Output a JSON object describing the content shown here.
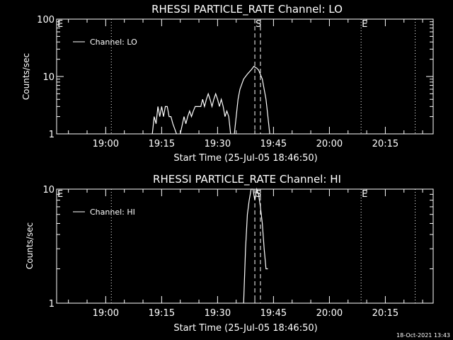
{
  "footer": {
    "timestamp": "18-Oct-2021 13:43"
  },
  "chart_data": [
    {
      "type": "line",
      "title": "RHESSI PARTICLE_RATE Channel: LO",
      "xlabel": "Start Time (25-Jul-05 18:46:50)",
      "ylabel": "Counts/sec",
      "y_scale": "log",
      "ylim": [
        1,
        100
      ],
      "y_ticks": [
        {
          "value": 1,
          "label": "1"
        },
        {
          "value": 10,
          "label": "10"
        },
        {
          "value": 100,
          "label": "100"
        }
      ],
      "xlim": [
        "18:46:50",
        "20:27:50"
      ],
      "x_ticks": [
        "19:00",
        "19:15",
        "19:30",
        "19:45",
        "20:00",
        "20:15"
      ],
      "legend": {
        "position": "top-left",
        "entries": [
          "Channel: LO"
        ]
      },
      "markers": [
        {
          "label": "E",
          "time": "18:46:50",
          "style": "dotted"
        },
        {
          "label": "",
          "time": "19:01:30",
          "style": "dotted"
        },
        {
          "label": "S",
          "time": "19:40:00",
          "style": "dashed"
        },
        {
          "label": "",
          "time": "19:41:30",
          "style": "dashed"
        },
        {
          "label": "E",
          "time": "20:08:30",
          "style": "dotted"
        },
        {
          "label": "",
          "time": "20:23:00",
          "style": "dotted"
        }
      ],
      "series": [
        {
          "name": "Channel: LO",
          "segments": [
            [
              [
                "19:12:30",
                1
              ],
              [
                "19:13:00",
                2
              ],
              [
                "19:13:30",
                1.5
              ],
              [
                "19:14:00",
                3
              ],
              [
                "19:14:30",
                2
              ],
              [
                "19:15:00",
                3
              ],
              [
                "19:15:30",
                2
              ],
              [
                "19:16:00",
                3
              ],
              [
                "19:16:30",
                3
              ],
              [
                "19:17:00",
                2
              ],
              [
                "19:17:30",
                2
              ],
              [
                "19:18:00",
                1.5
              ],
              [
                "19:19:00",
                1
              ]
            ],
            [
              [
                "19:20:00",
                1
              ],
              [
                "19:21:00",
                2
              ],
              [
                "19:21:30",
                1.5
              ],
              [
                "19:22:00",
                2
              ],
              [
                "19:22:30",
                2.5
              ],
              [
                "19:23:00",
                2
              ],
              [
                "19:23:30",
                2.5
              ],
              [
                "19:24:00",
                3
              ],
              [
                "19:24:30",
                3
              ],
              [
                "19:25:00",
                3
              ],
              [
                "19:25:30",
                3
              ],
              [
                "19:26:00",
                4
              ],
              [
                "19:26:30",
                3
              ],
              [
                "19:27:00",
                4
              ],
              [
                "19:27:30",
                5
              ],
              [
                "19:28:00",
                4
              ],
              [
                "19:28:30",
                3
              ],
              [
                "19:29:00",
                4
              ],
              [
                "19:29:30",
                5
              ],
              [
                "19:30:00",
                4
              ],
              [
                "19:30:30",
                3
              ],
              [
                "19:31:00",
                4
              ],
              [
                "19:31:30",
                3
              ],
              [
                "19:32:00",
                2
              ],
              [
                "19:32:30",
                2.5
              ],
              [
                "19:33:00",
                2
              ],
              [
                "19:33:30",
                1
              ]
            ],
            [
              [
                "19:34:30",
                1
              ],
              [
                "19:35:00",
                2
              ],
              [
                "19:35:30",
                4
              ],
              [
                "19:36:00",
                6
              ],
              [
                "19:37:00",
                9
              ],
              [
                "19:38:00",
                11
              ],
              [
                "19:39:00",
                13
              ],
              [
                "19:39:45",
                15
              ],
              [
                "19:40:30",
                14
              ],
              [
                "19:41:00",
                13
              ],
              [
                "19:42:00",
                9
              ],
              [
                "19:42:30",
                6
              ],
              [
                "19:43:00",
                4
              ],
              [
                "19:43:30",
                2
              ],
              [
                "19:44:00",
                1
              ]
            ]
          ]
        }
      ]
    },
    {
      "type": "line",
      "title": "RHESSI PARTICLE_RATE Channel: HI",
      "xlabel": "Start Time (25-Jul-05 18:46:50)",
      "ylabel": "Counts/sec",
      "y_scale": "log",
      "ylim": [
        1,
        10
      ],
      "y_ticks": [
        {
          "value": 1,
          "label": "1"
        },
        {
          "value": 10,
          "label": "10"
        }
      ],
      "xlim": [
        "18:46:50",
        "20:27:50"
      ],
      "x_ticks": [
        "19:00",
        "19:15",
        "19:30",
        "19:45",
        "20:00",
        "20:15"
      ],
      "legend": {
        "position": "top-left",
        "entries": [
          "Channel: HI"
        ]
      },
      "markers": [
        {
          "label": "E",
          "time": "18:46:50",
          "style": "dotted"
        },
        {
          "label": "",
          "time": "19:01:30",
          "style": "dotted"
        },
        {
          "label": "S",
          "time": "19:40:00",
          "style": "dashed"
        },
        {
          "label": "",
          "time": "19:41:30",
          "style": "dashed"
        },
        {
          "label": "E",
          "time": "20:08:30",
          "style": "dotted"
        },
        {
          "label": "",
          "time": "20:23:00",
          "style": "dotted"
        }
      ],
      "series": [
        {
          "name": "Channel: HI",
          "segments": [
            [
              [
                "19:37:00",
                1
              ],
              [
                "19:37:30",
                3
              ],
              [
                "19:38:00",
                6
              ],
              [
                "19:38:30",
                8
              ],
              [
                "19:39:00",
                10
              ],
              [
                "19:39:30",
                10
              ],
              [
                "19:40:00",
                8
              ],
              [
                "19:40:30",
                10
              ],
              [
                "19:41:00",
                9
              ],
              [
                "19:41:30",
                7
              ],
              [
                "19:42:00",
                5
              ],
              [
                "19:42:30",
                3
              ],
              [
                "19:43:00",
                2
              ],
              [
                "19:43:30",
                2
              ]
            ]
          ]
        }
      ]
    }
  ]
}
